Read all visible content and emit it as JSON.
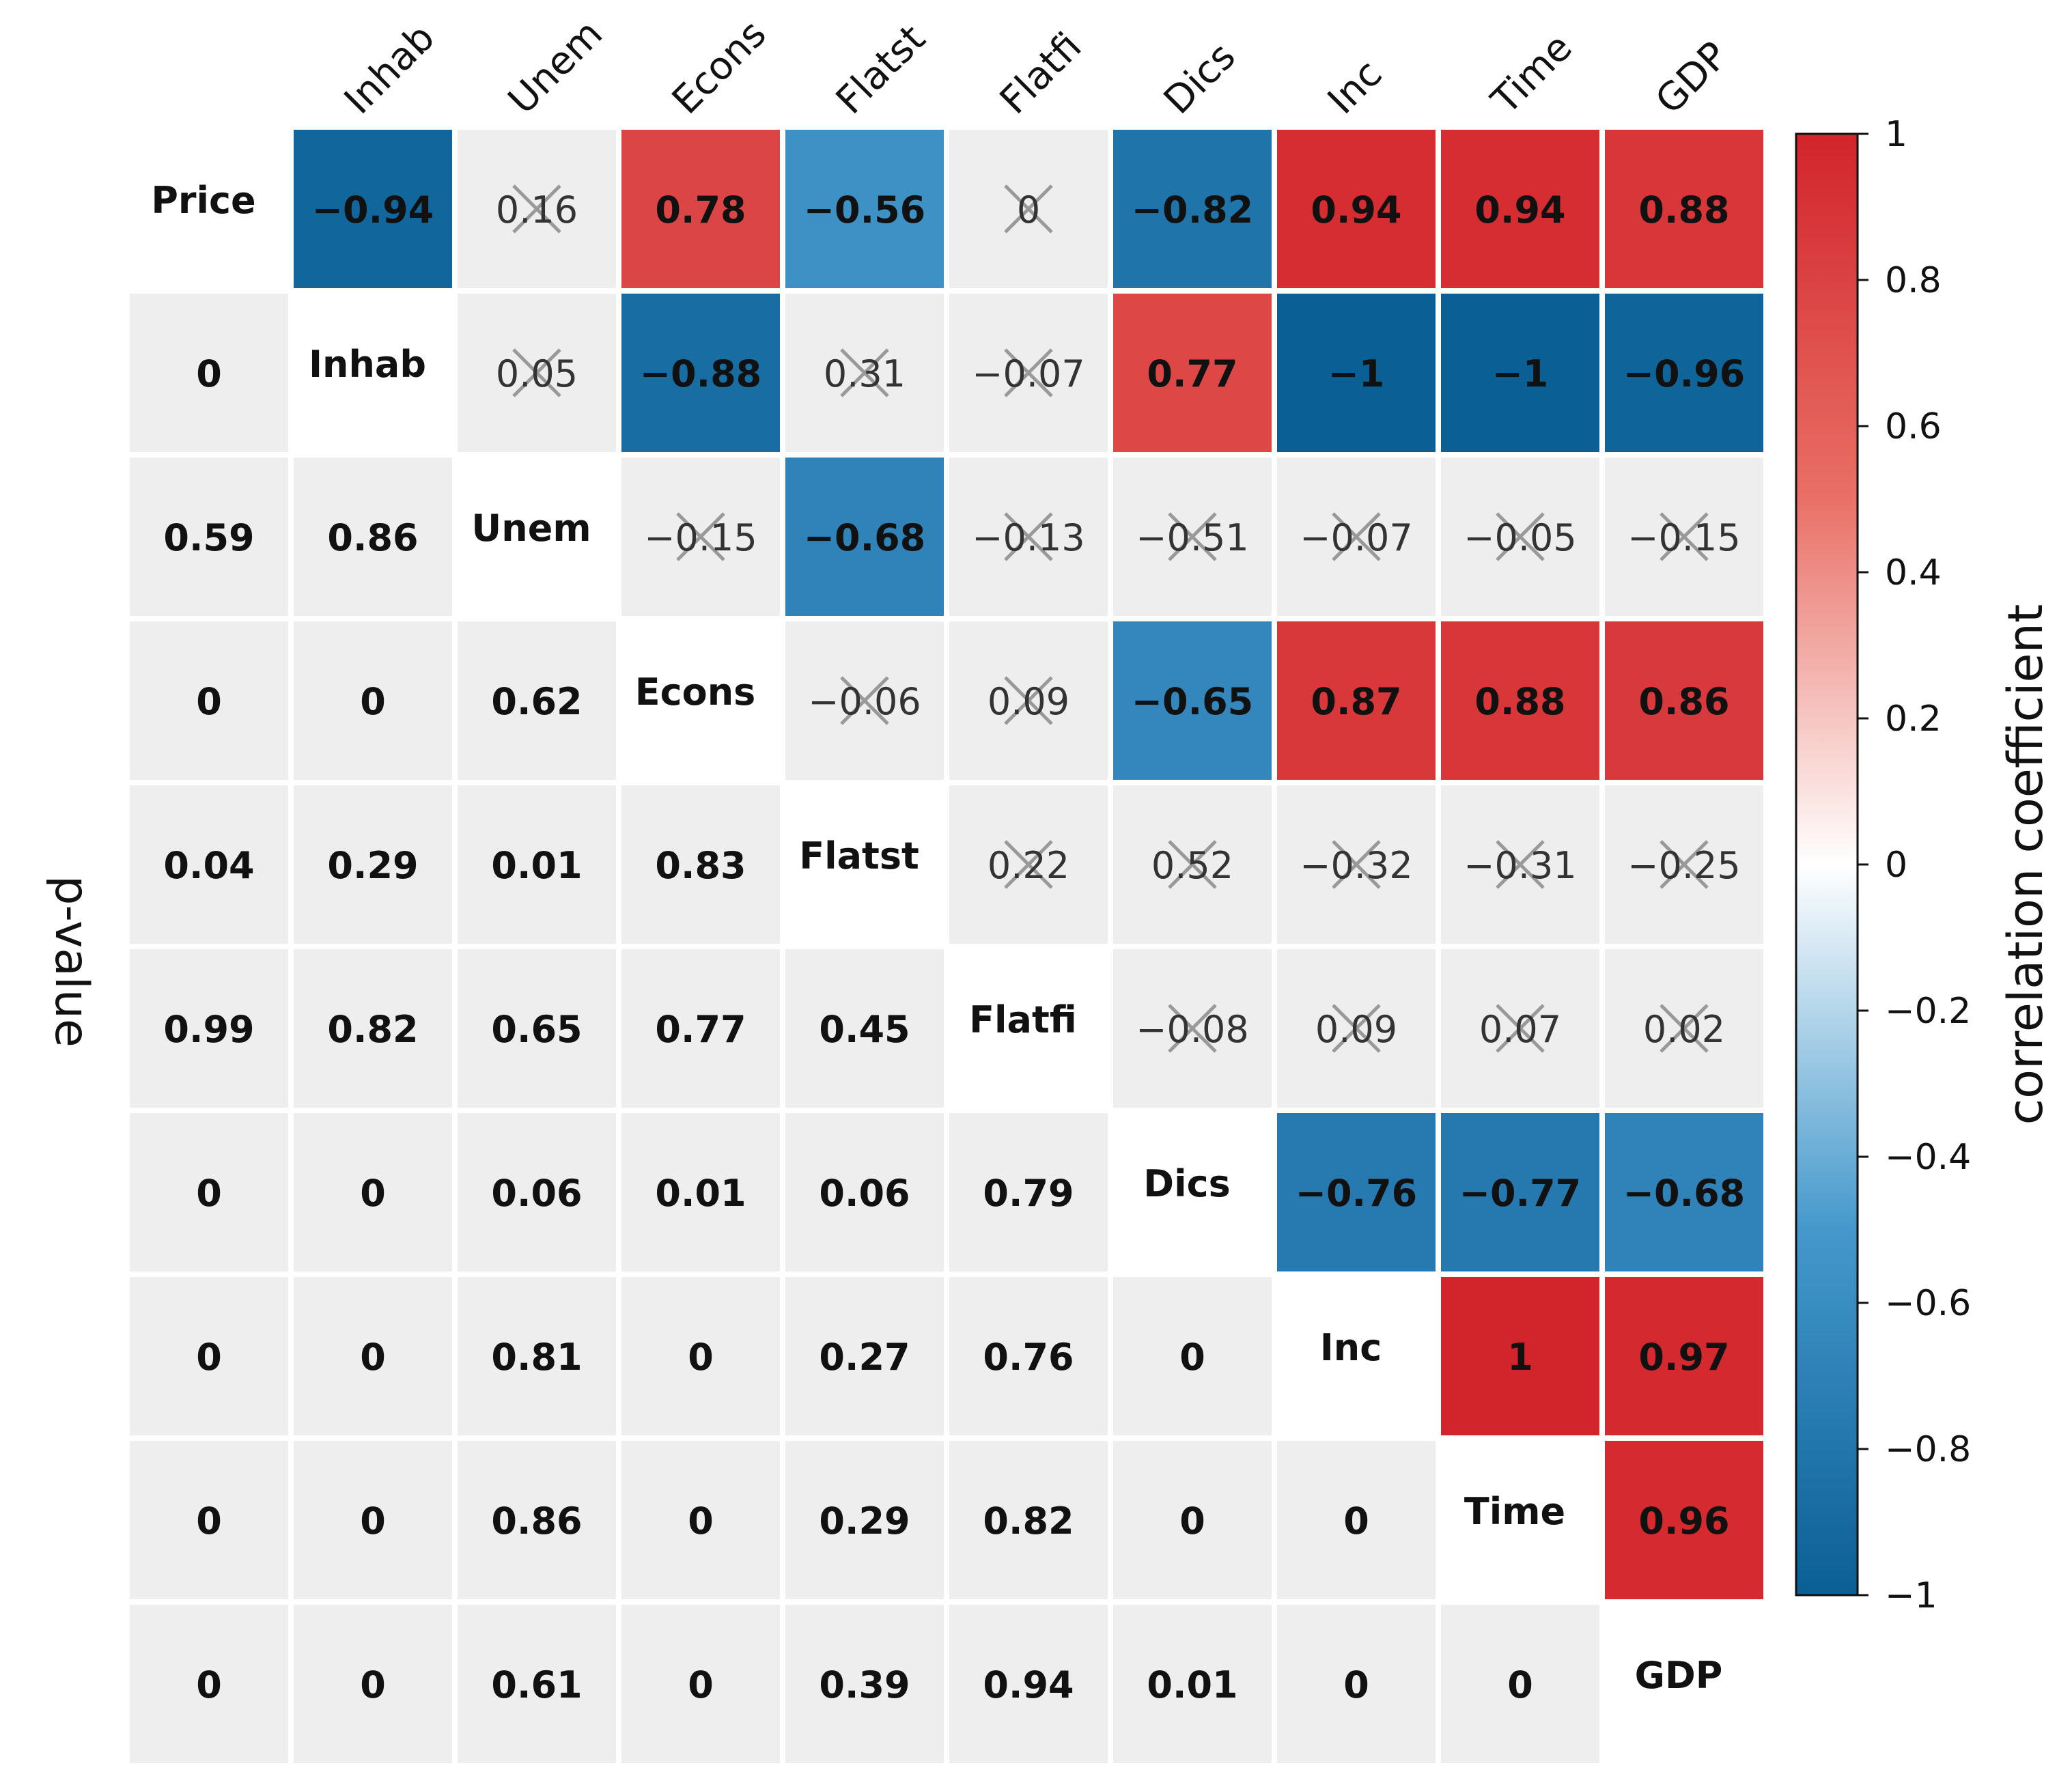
{
  "chart_data": {
    "type": "heatmap",
    "variables": [
      "Price",
      "Inhab",
      "Unem",
      "Econs",
      "Flatst",
      "Flatfi",
      "Dics",
      "Inc",
      "Time",
      "GDP"
    ],
    "column_labels": [
      "Inhab",
      "Unem",
      "Econs",
      "Flatst",
      "Flatfi",
      "Dics",
      "Inc",
      "Time",
      "GDP"
    ],
    "upper_triangle_label": "correlation coefficient",
    "lower_triangle_label": "p-value",
    "upper_cells": [
      {
        "row": 0,
        "col": 1,
        "text": "−0.94",
        "value": -0.94,
        "significant": true
      },
      {
        "row": 0,
        "col": 2,
        "text": "0.16",
        "value": 0.16,
        "significant": false
      },
      {
        "row": 0,
        "col": 3,
        "text": "0.78",
        "value": 0.78,
        "significant": true
      },
      {
        "row": 0,
        "col": 4,
        "text": "−0.56",
        "value": -0.56,
        "significant": true
      },
      {
        "row": 0,
        "col": 5,
        "text": "0",
        "value": 0,
        "significant": false
      },
      {
        "row": 0,
        "col": 6,
        "text": "−0.82",
        "value": -0.82,
        "significant": true
      },
      {
        "row": 0,
        "col": 7,
        "text": "0.94",
        "value": 0.94,
        "significant": true
      },
      {
        "row": 0,
        "col": 8,
        "text": "0.94",
        "value": 0.94,
        "significant": true
      },
      {
        "row": 0,
        "col": 9,
        "text": "0.88",
        "value": 0.88,
        "significant": true
      },
      {
        "row": 1,
        "col": 2,
        "text": "0.05",
        "value": 0.05,
        "significant": false
      },
      {
        "row": 1,
        "col": 3,
        "text": "−0.88",
        "value": -0.88,
        "significant": true
      },
      {
        "row": 1,
        "col": 4,
        "text": "0.31",
        "value": 0.31,
        "significant": false
      },
      {
        "row": 1,
        "col": 5,
        "text": "−0.07",
        "value": -0.07,
        "significant": false
      },
      {
        "row": 1,
        "col": 6,
        "text": "0.77",
        "value": 0.77,
        "significant": true
      },
      {
        "row": 1,
        "col": 7,
        "text": "−1",
        "value": -1,
        "significant": true
      },
      {
        "row": 1,
        "col": 8,
        "text": "−1",
        "value": -1,
        "significant": true
      },
      {
        "row": 1,
        "col": 9,
        "text": "−0.96",
        "value": -0.96,
        "significant": true
      },
      {
        "row": 2,
        "col": 3,
        "text": "−0.15",
        "value": -0.15,
        "significant": false
      },
      {
        "row": 2,
        "col": 4,
        "text": "−0.68",
        "value": -0.68,
        "significant": true
      },
      {
        "row": 2,
        "col": 5,
        "text": "−0.13",
        "value": -0.13,
        "significant": false
      },
      {
        "row": 2,
        "col": 6,
        "text": "−0.51",
        "value": -0.51,
        "significant": false
      },
      {
        "row": 2,
        "col": 7,
        "text": "−0.07",
        "value": -0.07,
        "significant": false
      },
      {
        "row": 2,
        "col": 8,
        "text": "−0.05",
        "value": -0.05,
        "significant": false
      },
      {
        "row": 2,
        "col": 9,
        "text": "−0.15",
        "value": -0.15,
        "significant": false
      },
      {
        "row": 3,
        "col": 4,
        "text": "−0.06",
        "value": -0.06,
        "significant": false
      },
      {
        "row": 3,
        "col": 5,
        "text": "0.09",
        "value": 0.09,
        "significant": false
      },
      {
        "row": 3,
        "col": 6,
        "text": "−0.65",
        "value": -0.65,
        "significant": true
      },
      {
        "row": 3,
        "col": 7,
        "text": "0.87",
        "value": 0.87,
        "significant": true
      },
      {
        "row": 3,
        "col": 8,
        "text": "0.88",
        "value": 0.88,
        "significant": true
      },
      {
        "row": 3,
        "col": 9,
        "text": "0.86",
        "value": 0.86,
        "significant": true
      },
      {
        "row": 4,
        "col": 5,
        "text": "0.22",
        "value": 0.22,
        "significant": false
      },
      {
        "row": 4,
        "col": 6,
        "text": "0.52",
        "value": 0.52,
        "significant": false
      },
      {
        "row": 4,
        "col": 7,
        "text": "−0.32",
        "value": -0.32,
        "significant": false
      },
      {
        "row": 4,
        "col": 8,
        "text": "−0.31",
        "value": -0.31,
        "significant": false
      },
      {
        "row": 4,
        "col": 9,
        "text": "−0.25",
        "value": -0.25,
        "significant": false
      },
      {
        "row": 5,
        "col": 6,
        "text": "−0.08",
        "value": -0.08,
        "significant": false
      },
      {
        "row": 5,
        "col": 7,
        "text": "0.09",
        "value": 0.09,
        "significant": false
      },
      {
        "row": 5,
        "col": 8,
        "text": "0.07",
        "value": 0.07,
        "significant": false
      },
      {
        "row": 5,
        "col": 9,
        "text": "0.02",
        "value": 0.02,
        "significant": false
      },
      {
        "row": 6,
        "col": 7,
        "text": "−0.76",
        "value": -0.76,
        "significant": true
      },
      {
        "row": 6,
        "col": 8,
        "text": "−0.77",
        "value": -0.77,
        "significant": true
      },
      {
        "row": 6,
        "col": 9,
        "text": "−0.68",
        "value": -0.68,
        "significant": true
      },
      {
        "row": 7,
        "col": 8,
        "text": "1",
        "value": 1,
        "significant": true
      },
      {
        "row": 7,
        "col": 9,
        "text": "0.97",
        "value": 0.97,
        "significant": true
      },
      {
        "row": 8,
        "col": 9,
        "text": "0.96",
        "value": 0.96,
        "significant": true
      }
    ],
    "lower_cells": [
      {
        "row": 1,
        "col": 0,
        "text": "0"
      },
      {
        "row": 2,
        "col": 0,
        "text": "0.59"
      },
      {
        "row": 2,
        "col": 1,
        "text": "0.86"
      },
      {
        "row": 3,
        "col": 0,
        "text": "0"
      },
      {
        "row": 3,
        "col": 1,
        "text": "0"
      },
      {
        "row": 3,
        "col": 2,
        "text": "0.62"
      },
      {
        "row": 4,
        "col": 0,
        "text": "0.04"
      },
      {
        "row": 4,
        "col": 1,
        "text": "0.29"
      },
      {
        "row": 4,
        "col": 2,
        "text": "0.01"
      },
      {
        "row": 4,
        "col": 3,
        "text": "0.83"
      },
      {
        "row": 5,
        "col": 0,
        "text": "0.99"
      },
      {
        "row": 5,
        "col": 1,
        "text": "0.82"
      },
      {
        "row": 5,
        "col": 2,
        "text": "0.65"
      },
      {
        "row": 5,
        "col": 3,
        "text": "0.77"
      },
      {
        "row": 5,
        "col": 4,
        "text": "0.45"
      },
      {
        "row": 6,
        "col": 0,
        "text": "0"
      },
      {
        "row": 6,
        "col": 1,
        "text": "0"
      },
      {
        "row": 6,
        "col": 2,
        "text": "0.06"
      },
      {
        "row": 6,
        "col": 3,
        "text": "0.01"
      },
      {
        "row": 6,
        "col": 4,
        "text": "0.06"
      },
      {
        "row": 6,
        "col": 5,
        "text": "0.79"
      },
      {
        "row": 7,
        "col": 0,
        "text": "0"
      },
      {
        "row": 7,
        "col": 1,
        "text": "0"
      },
      {
        "row": 7,
        "col": 2,
        "text": "0.81"
      },
      {
        "row": 7,
        "col": 3,
        "text": "0"
      },
      {
        "row": 7,
        "col": 4,
        "text": "0.27"
      },
      {
        "row": 7,
        "col": 5,
        "text": "0.76"
      },
      {
        "row": 7,
        "col": 6,
        "text": "0"
      },
      {
        "row": 8,
        "col": 0,
        "text": "0"
      },
      {
        "row": 8,
        "col": 1,
        "text": "0"
      },
      {
        "row": 8,
        "col": 2,
        "text": "0.86"
      },
      {
        "row": 8,
        "col": 3,
        "text": "0"
      },
      {
        "row": 8,
        "col": 4,
        "text": "0.29"
      },
      {
        "row": 8,
        "col": 5,
        "text": "0.82"
      },
      {
        "row": 8,
        "col": 6,
        "text": "0"
      },
      {
        "row": 8,
        "col": 7,
        "text": "0"
      },
      {
        "row": 9,
        "col": 0,
        "text": "0"
      },
      {
        "row": 9,
        "col": 1,
        "text": "0"
      },
      {
        "row": 9,
        "col": 2,
        "text": "0.61"
      },
      {
        "row": 9,
        "col": 3,
        "text": "0"
      },
      {
        "row": 9,
        "col": 4,
        "text": "0.39"
      },
      {
        "row": 9,
        "col": 5,
        "text": "0.94"
      },
      {
        "row": 9,
        "col": 6,
        "text": "0.01"
      },
      {
        "row": 9,
        "col": 7,
        "text": "0"
      },
      {
        "row": 9,
        "col": 8,
        "text": "0"
      }
    ],
    "colorbar": {
      "label": "correlation coefficient",
      "range": [
        -1,
        1
      ],
      "ticks": [
        1,
        0.8,
        0.6,
        0.4,
        0.2,
        0,
        -0.2,
        -0.4,
        -0.6,
        -0.8,
        -1
      ],
      "tick_labels": [
        "1",
        "0.8",
        "0.6",
        "0.4",
        "0.2",
        "0",
        "−0.2",
        "−0.4",
        "−0.6",
        "−0.8",
        "−1"
      ],
      "colors": {
        "negative": "#0a5f95",
        "neutral": "#ffffff",
        "positive": "#d2242b"
      }
    },
    "colors": {
      "nonsignificant_bg": "#eeeeee",
      "pvalue_bg": "#eeeeee",
      "diagonal_bg": "#ffffff",
      "grid": "#ffffff",
      "cross": "#999999",
      "text": "#111111"
    }
  }
}
